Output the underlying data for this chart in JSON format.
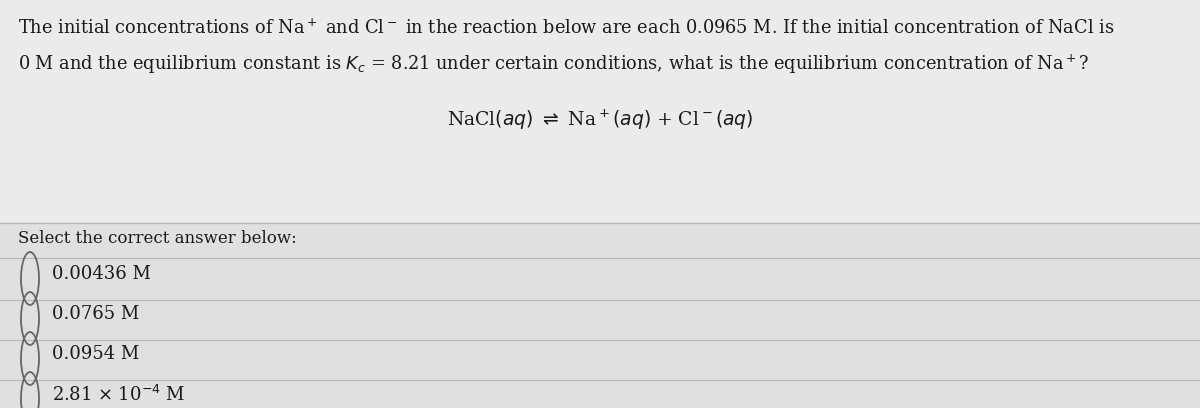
{
  "bg_color": "#d8d8d8",
  "top_section_color": "#ebebeb",
  "bottom_section_color": "#e0e0e0",
  "text_color": "#1a1a1a",
  "divider_color": "#b8b8b8",
  "circle_color": "#666666",
  "font_size_q": 12.8,
  "font_size_eq": 13.5,
  "font_size_ans": 13.0,
  "font_size_select": 12.0,
  "q_line1": "The initial concentrations of Na$^+$ and Cl$^-$ in the reaction below are each 0.0965 M. If the initial concentration of NaCl is",
  "q_line2": "0 M and the equilibrium constant is $K_c$ = 8.21 under certain conditions, what is the equilibrium concentration of Na$^+$?",
  "equation": "NaCl$(aq)$ $\\rightleftharpoons$ Na$^+$$(aq)$ + Cl$^-$$(aq)$",
  "select_text": "Select the correct answer below:",
  "answers": [
    "0.00436 M",
    "0.0765 M",
    "0.0954 M",
    "2.81 $\\times$ 10$^{-4}$ M"
  ]
}
